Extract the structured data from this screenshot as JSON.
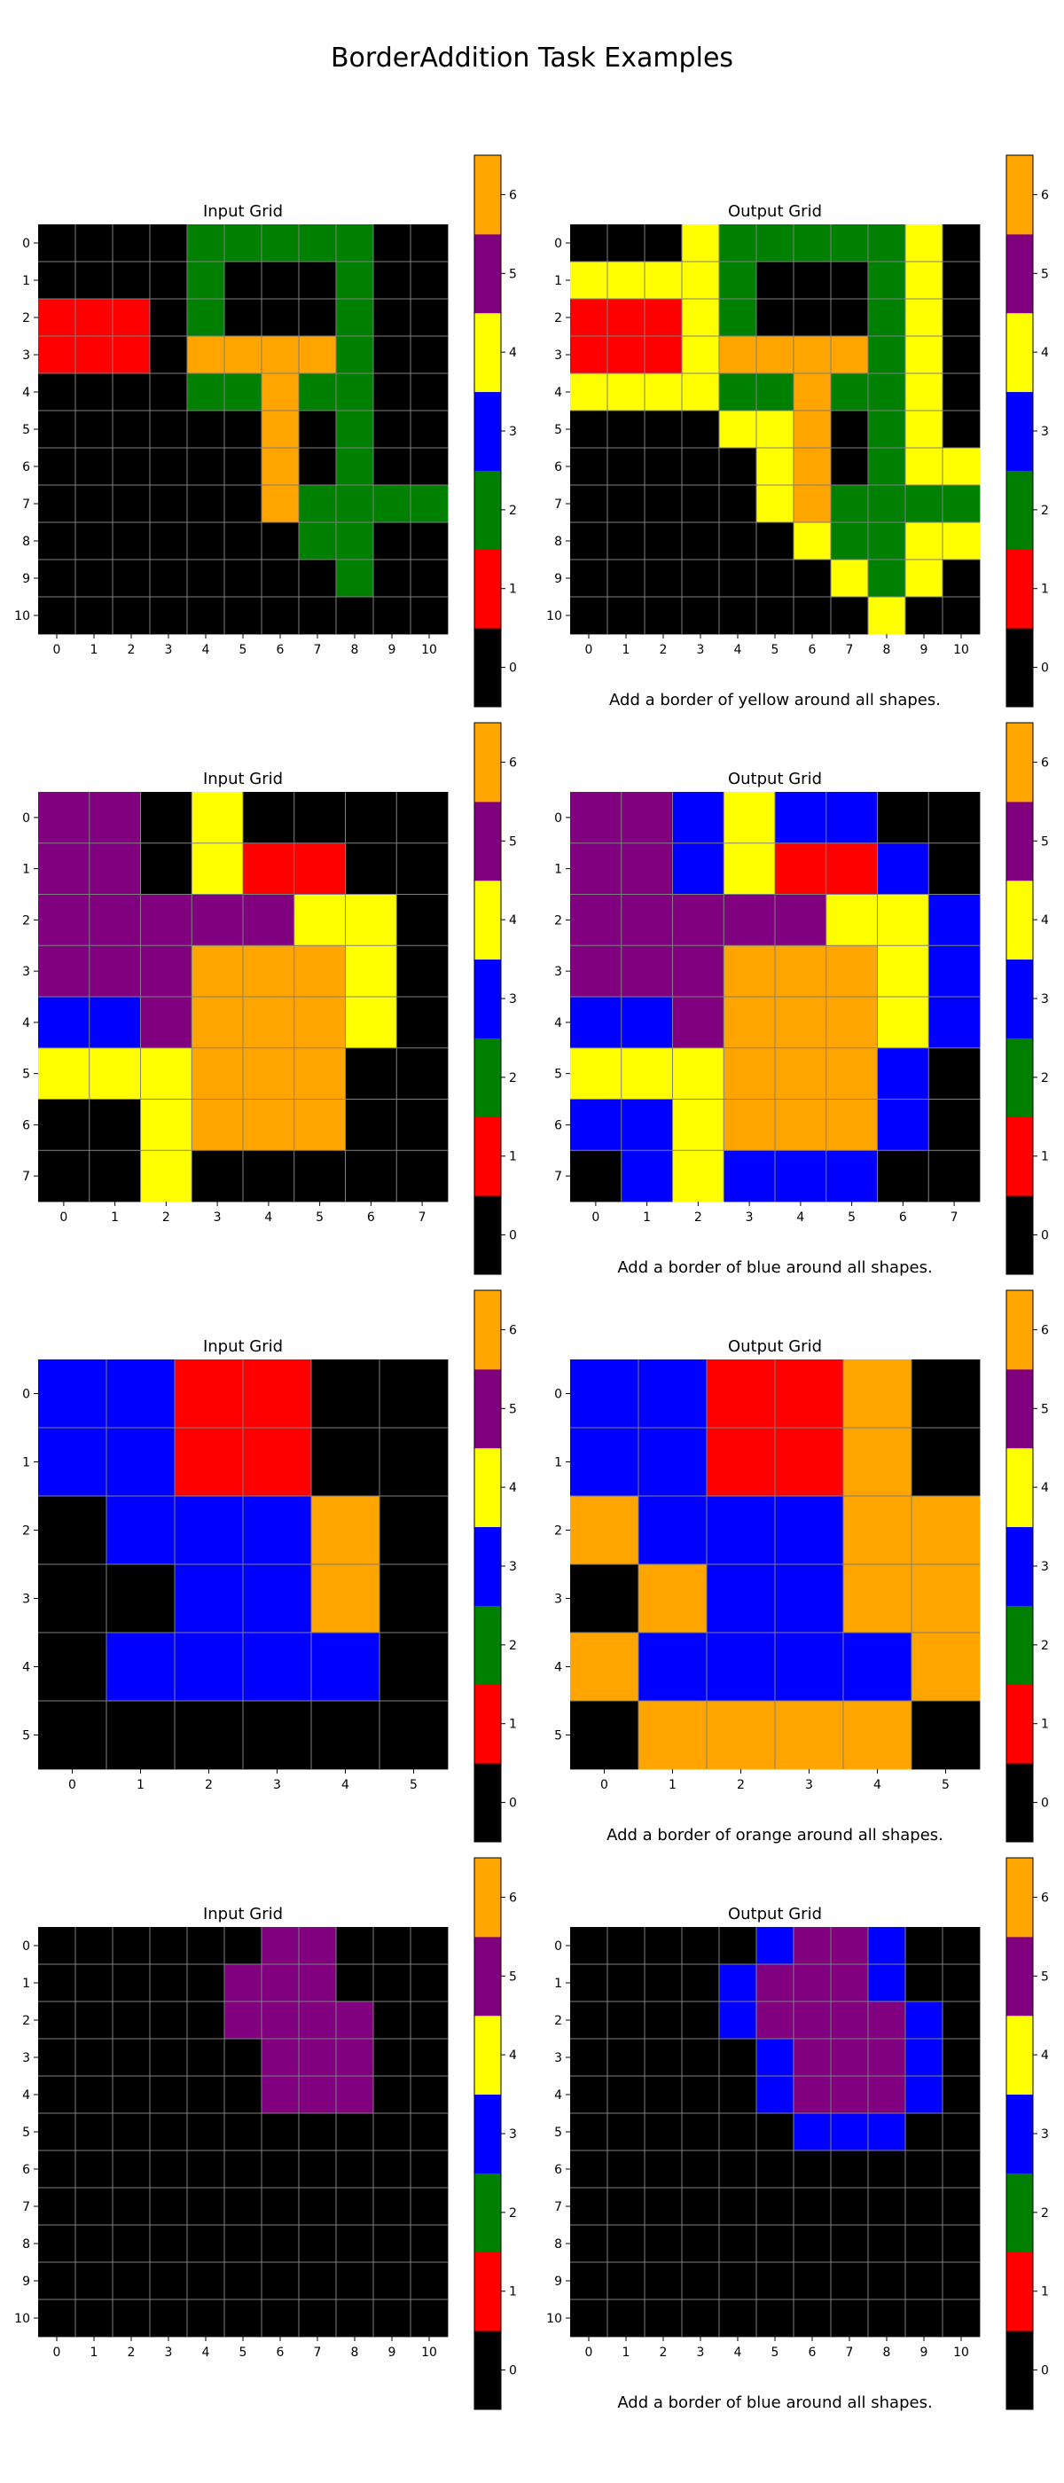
{
  "title": "BorderAddition Task Examples",
  "panel_titles": {
    "input": "Input Grid",
    "output": "Output Grid"
  },
  "colormap": {
    "colors": [
      "#000000",
      "#ff0000",
      "#008000",
      "#0000ff",
      "#ffff00",
      "#800080",
      "#ffa500"
    ],
    "ticks": [
      0,
      1,
      2,
      3,
      4,
      5,
      6
    ],
    "vmin": -0.5,
    "vmax": 6.5
  },
  "chart_data": [
    {
      "type": "heatmap",
      "caption": "Add a border of yellow around all shapes.",
      "input": [
        [
          0,
          0,
          0,
          0,
          2,
          2,
          2,
          2,
          2,
          0,
          0
        ],
        [
          0,
          0,
          0,
          0,
          2,
          0,
          0,
          0,
          2,
          0,
          0
        ],
        [
          1,
          1,
          1,
          0,
          2,
          0,
          0,
          0,
          2,
          0,
          0
        ],
        [
          1,
          1,
          1,
          0,
          6,
          6,
          6,
          6,
          2,
          0,
          0
        ],
        [
          0,
          0,
          0,
          0,
          2,
          2,
          6,
          2,
          2,
          0,
          0
        ],
        [
          0,
          0,
          0,
          0,
          0,
          0,
          6,
          0,
          2,
          0,
          0
        ],
        [
          0,
          0,
          0,
          0,
          0,
          0,
          6,
          0,
          2,
          0,
          0
        ],
        [
          0,
          0,
          0,
          0,
          0,
          0,
          6,
          2,
          2,
          2,
          2
        ],
        [
          0,
          0,
          0,
          0,
          0,
          0,
          0,
          2,
          2,
          0,
          0
        ],
        [
          0,
          0,
          0,
          0,
          0,
          0,
          0,
          0,
          2,
          0,
          0
        ],
        [
          0,
          0,
          0,
          0,
          0,
          0,
          0,
          0,
          0,
          0,
          0
        ]
      ],
      "output": [
        [
          0,
          0,
          0,
          4,
          2,
          2,
          2,
          2,
          2,
          4,
          0
        ],
        [
          4,
          4,
          4,
          4,
          2,
          0,
          0,
          0,
          2,
          4,
          0
        ],
        [
          1,
          1,
          1,
          4,
          2,
          0,
          0,
          0,
          2,
          4,
          0
        ],
        [
          1,
          1,
          1,
          4,
          6,
          6,
          6,
          6,
          2,
          4,
          0
        ],
        [
          4,
          4,
          4,
          4,
          2,
          2,
          6,
          2,
          2,
          4,
          0
        ],
        [
          0,
          0,
          0,
          0,
          4,
          4,
          6,
          0,
          2,
          4,
          0
        ],
        [
          0,
          0,
          0,
          0,
          0,
          4,
          6,
          0,
          2,
          4,
          4
        ],
        [
          0,
          0,
          0,
          0,
          0,
          4,
          6,
          2,
          2,
          2,
          2
        ],
        [
          0,
          0,
          0,
          0,
          0,
          0,
          4,
          2,
          2,
          4,
          4
        ],
        [
          0,
          0,
          0,
          0,
          0,
          0,
          0,
          4,
          2,
          4,
          0
        ],
        [
          0,
          0,
          0,
          0,
          0,
          0,
          0,
          0,
          4,
          0,
          0
        ]
      ]
    },
    {
      "type": "heatmap",
      "caption": "Add a border of blue around all shapes.",
      "input": [
        [
          5,
          5,
          0,
          4,
          0,
          0,
          0,
          0
        ],
        [
          5,
          5,
          0,
          4,
          1,
          1,
          0,
          0
        ],
        [
          5,
          5,
          5,
          5,
          5,
          4,
          4,
          0
        ],
        [
          5,
          5,
          5,
          6,
          6,
          6,
          4,
          0
        ],
        [
          3,
          3,
          5,
          6,
          6,
          6,
          4,
          0
        ],
        [
          4,
          4,
          4,
          6,
          6,
          6,
          0,
          0
        ],
        [
          0,
          0,
          4,
          6,
          6,
          6,
          0,
          0
        ],
        [
          0,
          0,
          4,
          0,
          0,
          0,
          0,
          0
        ]
      ],
      "output": [
        [
          5,
          5,
          3,
          4,
          3,
          3,
          0,
          0
        ],
        [
          5,
          5,
          3,
          4,
          1,
          1,
          3,
          0
        ],
        [
          5,
          5,
          5,
          5,
          5,
          4,
          4,
          3
        ],
        [
          5,
          5,
          5,
          6,
          6,
          6,
          4,
          3
        ],
        [
          3,
          3,
          5,
          6,
          6,
          6,
          4,
          3
        ],
        [
          4,
          4,
          4,
          6,
          6,
          6,
          3,
          0
        ],
        [
          3,
          3,
          4,
          6,
          6,
          6,
          3,
          0
        ],
        [
          0,
          3,
          4,
          3,
          3,
          3,
          0,
          0
        ]
      ]
    },
    {
      "type": "heatmap",
      "caption": "Add a border of orange around all shapes.",
      "input": [
        [
          3,
          3,
          1,
          1,
          0,
          0
        ],
        [
          3,
          3,
          1,
          1,
          0,
          0
        ],
        [
          0,
          3,
          3,
          3,
          6,
          0
        ],
        [
          0,
          0,
          3,
          3,
          6,
          0
        ],
        [
          0,
          3,
          3,
          3,
          3,
          0
        ],
        [
          0,
          0,
          0,
          0,
          0,
          0
        ]
      ],
      "output": [
        [
          3,
          3,
          1,
          1,
          6,
          0
        ],
        [
          3,
          3,
          1,
          1,
          6,
          0
        ],
        [
          6,
          3,
          3,
          3,
          6,
          6
        ],
        [
          0,
          6,
          3,
          3,
          6,
          6
        ],
        [
          6,
          3,
          3,
          3,
          3,
          6
        ],
        [
          0,
          6,
          6,
          6,
          6,
          0
        ]
      ]
    },
    {
      "type": "heatmap",
      "caption": "Add a border of blue around all shapes.",
      "input": [
        [
          0,
          0,
          0,
          0,
          0,
          0,
          5,
          5,
          0,
          0,
          0
        ],
        [
          0,
          0,
          0,
          0,
          0,
          5,
          5,
          5,
          0,
          0,
          0
        ],
        [
          0,
          0,
          0,
          0,
          0,
          5,
          5,
          5,
          5,
          0,
          0
        ],
        [
          0,
          0,
          0,
          0,
          0,
          0,
          5,
          5,
          5,
          0,
          0
        ],
        [
          0,
          0,
          0,
          0,
          0,
          0,
          5,
          5,
          5,
          0,
          0
        ],
        [
          0,
          0,
          0,
          0,
          0,
          0,
          0,
          0,
          0,
          0,
          0
        ],
        [
          0,
          0,
          0,
          0,
          0,
          0,
          0,
          0,
          0,
          0,
          0
        ],
        [
          0,
          0,
          0,
          0,
          0,
          0,
          0,
          0,
          0,
          0,
          0
        ],
        [
          0,
          0,
          0,
          0,
          0,
          0,
          0,
          0,
          0,
          0,
          0
        ],
        [
          0,
          0,
          0,
          0,
          0,
          0,
          0,
          0,
          0,
          0,
          0
        ],
        [
          0,
          0,
          0,
          0,
          0,
          0,
          0,
          0,
          0,
          0,
          0
        ]
      ],
      "output": [
        [
          0,
          0,
          0,
          0,
          0,
          3,
          5,
          5,
          3,
          0,
          0
        ],
        [
          0,
          0,
          0,
          0,
          3,
          5,
          5,
          5,
          3,
          0,
          0
        ],
        [
          0,
          0,
          0,
          0,
          3,
          5,
          5,
          5,
          5,
          3,
          0
        ],
        [
          0,
          0,
          0,
          0,
          0,
          3,
          5,
          5,
          5,
          3,
          0
        ],
        [
          0,
          0,
          0,
          0,
          0,
          3,
          5,
          5,
          5,
          3,
          0
        ],
        [
          0,
          0,
          0,
          0,
          0,
          0,
          3,
          3,
          3,
          0,
          0
        ],
        [
          0,
          0,
          0,
          0,
          0,
          0,
          0,
          0,
          0,
          0,
          0
        ],
        [
          0,
          0,
          0,
          0,
          0,
          0,
          0,
          0,
          0,
          0,
          0
        ],
        [
          0,
          0,
          0,
          0,
          0,
          0,
          0,
          0,
          0,
          0,
          0
        ],
        [
          0,
          0,
          0,
          0,
          0,
          0,
          0,
          0,
          0,
          0,
          0
        ],
        [
          0,
          0,
          0,
          0,
          0,
          0,
          0,
          0,
          0,
          0,
          0
        ]
      ]
    }
  ]
}
